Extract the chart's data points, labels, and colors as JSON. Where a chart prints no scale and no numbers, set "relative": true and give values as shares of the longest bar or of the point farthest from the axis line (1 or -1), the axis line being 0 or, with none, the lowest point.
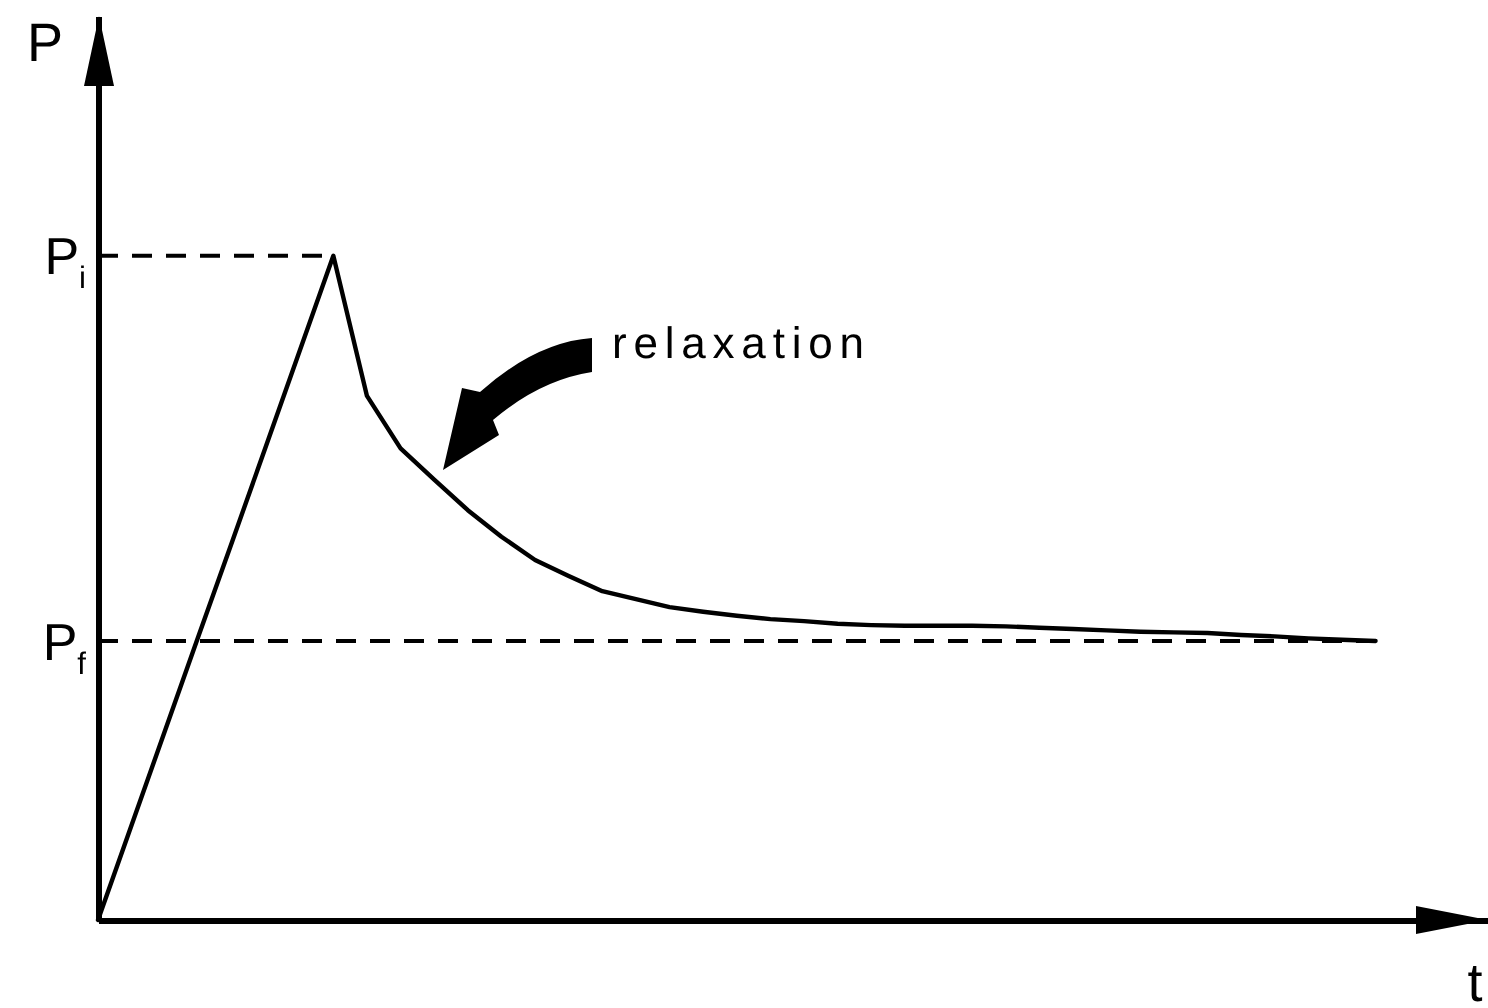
{
  "chart_data": {
    "type": "line",
    "relative": true,
    "xlabel": "t",
    "ylabel": "P",
    "color": "#000000",
    "categories": [
      null,
      null,
      null,
      null,
      null,
      null,
      null,
      null,
      null,
      null,
      null,
      null,
      null,
      null,
      null,
      null,
      null,
      null,
      null,
      null,
      null,
      null,
      null,
      null,
      null,
      null,
      null,
      null,
      null,
      null,
      null,
      null,
      null,
      null,
      null,
      null,
      null,
      null,
      null
    ],
    "values": [
      0,
      0.143,
      0.286,
      0.429,
      0.571,
      0.714,
      0.857,
      1,
      0.789,
      0.71,
      0.663,
      0.617,
      0.577,
      0.542,
      0.518,
      0.495,
      0.483,
      0.471,
      0.464,
      0.458,
      0.453,
      0.45,
      0.446,
      0.444,
      0.443,
      0.443,
      0.443,
      0.442,
      0.44,
      0.438,
      0.436,
      0.434,
      0.433,
      0.432,
      0.429,
      0.427,
      0.424,
      0.422,
      0.42
    ],
    "ref_lines": [
      {
        "axis": "y",
        "value": 1,
        "label": "P$_{i}$",
        "line_style": "dashed",
        "color": "#000000"
      },
      {
        "axis": "y",
        "value": 0.42,
        "label": "P$_{f}$",
        "line_style": "dashed",
        "color": "#000000"
      }
    ],
    "annotations": [
      "relaxation"
    ]
  }
}
